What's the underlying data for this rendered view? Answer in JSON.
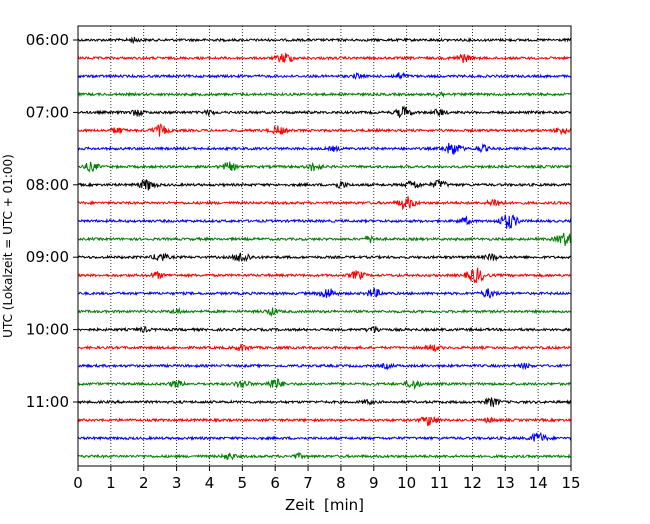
{
  "chart_data": {
    "type": "line",
    "title": "",
    "xlabel": "Zeit  [min]",
    "ylabel": "UTC (Lokalzeit = UTC + 01:00)",
    "xlim": [
      0,
      15
    ],
    "x_ticks": [
      0,
      1,
      2,
      3,
      4,
      5,
      6,
      7,
      8,
      9,
      10,
      11,
      12,
      13,
      14,
      15
    ],
    "x_tick_labels": [
      "0",
      "1",
      "2",
      "3",
      "4",
      "5",
      "6",
      "7",
      "8",
      "9",
      "10",
      "11",
      "12",
      "13",
      "14",
      "15"
    ],
    "y_tick_labels": [
      "06:00",
      "07:00",
      "08:00",
      "09:00",
      "10:00",
      "11:00"
    ],
    "y_tick_trace_index": [
      0,
      4,
      8,
      12,
      16,
      20
    ],
    "grid": "vertical dotted",
    "trace_interval_min": 15,
    "trace_color_cycle": [
      "#000000",
      "#ff0000",
      "#0000ff",
      "#008000"
    ],
    "traces": [
      {
        "start": "06:00",
        "events": [
          {
            "t": 1.7,
            "amp": 2
          }
        ]
      },
      {
        "start": "06:15",
        "events": [
          {
            "t": 6.3,
            "amp": 5
          },
          {
            "t": 11.7,
            "amp": 4
          }
        ]
      },
      {
        "start": "06:30",
        "events": [
          {
            "t": 8.5,
            "amp": 2
          },
          {
            "t": 9.8,
            "amp": 3
          }
        ]
      },
      {
        "start": "06:45",
        "events": [
          {
            "t": 11.0,
            "amp": 2
          }
        ]
      },
      {
        "start": "07:00",
        "events": [
          {
            "t": 1.8,
            "amp": 3
          },
          {
            "t": 4.0,
            "amp": 2
          },
          {
            "t": 9.9,
            "amp": 5
          },
          {
            "t": 11.0,
            "amp": 3
          }
        ]
      },
      {
        "start": "07:15",
        "events": [
          {
            "t": 1.2,
            "amp": 3
          },
          {
            "t": 2.5,
            "amp": 5
          },
          {
            "t": 6.1,
            "amp": 4
          },
          {
            "t": 14.7,
            "amp": 3
          }
        ]
      },
      {
        "start": "07:30",
        "events": [
          {
            "t": 7.8,
            "amp": 2
          },
          {
            "t": 11.4,
            "amp": 6
          },
          {
            "t": 12.3,
            "amp": 3
          }
        ]
      },
      {
        "start": "07:45",
        "events": [
          {
            "t": 0.4,
            "amp": 4
          },
          {
            "t": 4.6,
            "amp": 4
          },
          {
            "t": 7.2,
            "amp": 4
          }
        ]
      },
      {
        "start": "08:00",
        "events": [
          {
            "t": 2.1,
            "amp": 5
          },
          {
            "t": 8.0,
            "amp": 3
          },
          {
            "t": 10.2,
            "amp": 4
          },
          {
            "t": 11.0,
            "amp": 4
          }
        ]
      },
      {
        "start": "08:15",
        "events": [
          {
            "t": 10.0,
            "amp": 6
          },
          {
            "t": 12.7,
            "amp": 4
          }
        ]
      },
      {
        "start": "08:30",
        "events": [
          {
            "t": 11.8,
            "amp": 3
          },
          {
            "t": 13.1,
            "amp": 7
          }
        ]
      },
      {
        "start": "08:45",
        "events": [
          {
            "t": 8.9,
            "amp": 3
          },
          {
            "t": 14.8,
            "amp": 6
          }
        ]
      },
      {
        "start": "09:00",
        "events": [
          {
            "t": 2.5,
            "amp": 4
          },
          {
            "t": 5.0,
            "amp": 5
          },
          {
            "t": 12.6,
            "amp": 3
          }
        ]
      },
      {
        "start": "09:15",
        "events": [
          {
            "t": 2.4,
            "amp": 3
          },
          {
            "t": 8.5,
            "amp": 4
          },
          {
            "t": 12.1,
            "amp": 7
          }
        ]
      },
      {
        "start": "09:30",
        "events": [
          {
            "t": 7.6,
            "amp": 5
          },
          {
            "t": 9.0,
            "amp": 4
          },
          {
            "t": 12.5,
            "amp": 4
          }
        ]
      },
      {
        "start": "09:45",
        "events": [
          {
            "t": 3.0,
            "amp": 2
          },
          {
            "t": 5.9,
            "amp": 3
          }
        ]
      },
      {
        "start": "10:00",
        "events": [
          {
            "t": 2.0,
            "amp": 2
          },
          {
            "t": 9.0,
            "amp": 3
          }
        ]
      },
      {
        "start": "10:15",
        "events": [
          {
            "t": 5.0,
            "amp": 3
          },
          {
            "t": 10.8,
            "amp": 3
          }
        ]
      },
      {
        "start": "10:30",
        "events": [
          {
            "t": 9.4,
            "amp": 2
          },
          {
            "t": 13.6,
            "amp": 2
          }
        ]
      },
      {
        "start": "10:45",
        "events": [
          {
            "t": 3.0,
            "amp": 3
          },
          {
            "t": 5.0,
            "amp": 4
          },
          {
            "t": 6.0,
            "amp": 5
          },
          {
            "t": 10.2,
            "amp": 4
          }
        ]
      },
      {
        "start": "11:00",
        "events": [
          {
            "t": 8.8,
            "amp": 2
          },
          {
            "t": 12.6,
            "amp": 4
          }
        ]
      },
      {
        "start": "11:15",
        "events": [
          {
            "t": 10.7,
            "amp": 5
          },
          {
            "t": 12.5,
            "amp": 2
          }
        ]
      },
      {
        "start": "11:30",
        "events": [
          {
            "t": 14.0,
            "amp": 5
          }
        ]
      },
      {
        "start": "11:45",
        "events": [
          {
            "t": 4.6,
            "amp": 3
          },
          {
            "t": 6.7,
            "amp": 2
          }
        ]
      }
    ]
  }
}
